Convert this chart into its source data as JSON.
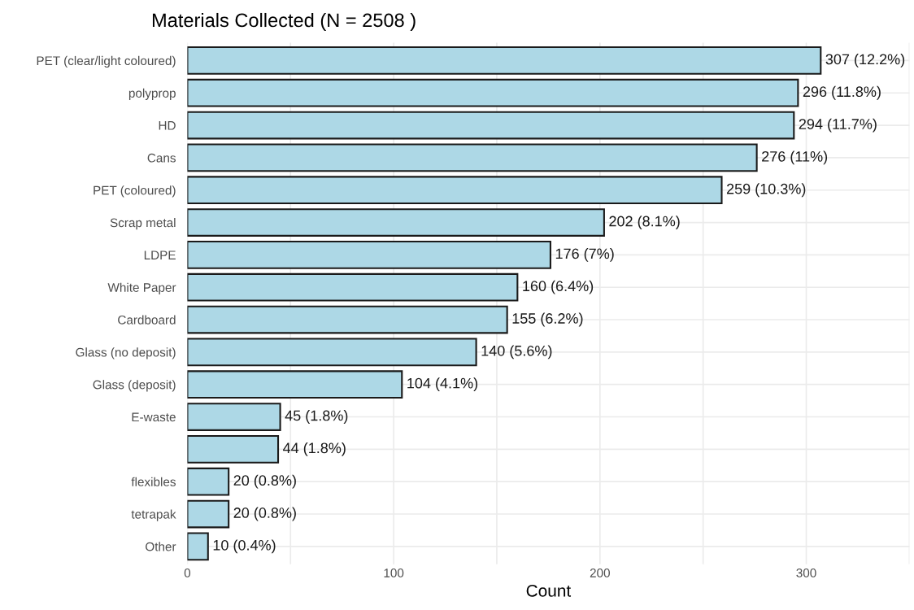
{
  "chart_data": {
    "type": "bar",
    "orientation": "horizontal",
    "title": "Materials Collected (N = 2508 )",
    "xlabel": "Count",
    "categories": [
      "PET (clear/light coloured)",
      "polyprop",
      "HD",
      "Cans",
      "PET (coloured)",
      "Scrap metal",
      "LDPE",
      "White Paper",
      "Cardboard",
      "Glass (no deposit)",
      "Glass (deposit)",
      "E-waste",
      null,
      "flexibles",
      "tetrapak",
      "Other"
    ],
    "values": [
      307,
      296,
      294,
      276,
      259,
      202,
      176,
      160,
      155,
      140,
      104,
      45,
      44,
      20,
      20,
      10
    ],
    "value_labels": [
      "307 (12.2%)",
      "296 (11.8%)",
      "294 (11.7%)",
      "276 (11%)",
      "259 (10.3%)",
      "202 (8.1%)",
      "176 (7%)",
      "160 (6.4%)",
      "155 (6.2%)",
      "140 (5.6%)",
      "104 (4.1%)",
      "45 (1.8%)",
      "44 (1.8%)",
      "20 (0.8%)",
      "20 (0.8%)",
      "10 (0.4%)"
    ],
    "color": "#add8e6",
    "xlim": [
      0,
      350
    ],
    "xticks": [
      0,
      {
        "value": 50,
        "label": null
      },
      100,
      {
        "value": 150,
        "label": null
      },
      200,
      {
        "value": 250,
        "label": null
      },
      300,
      {
        "value": 350,
        "label": null
      }
    ],
    "grid": true
  }
}
